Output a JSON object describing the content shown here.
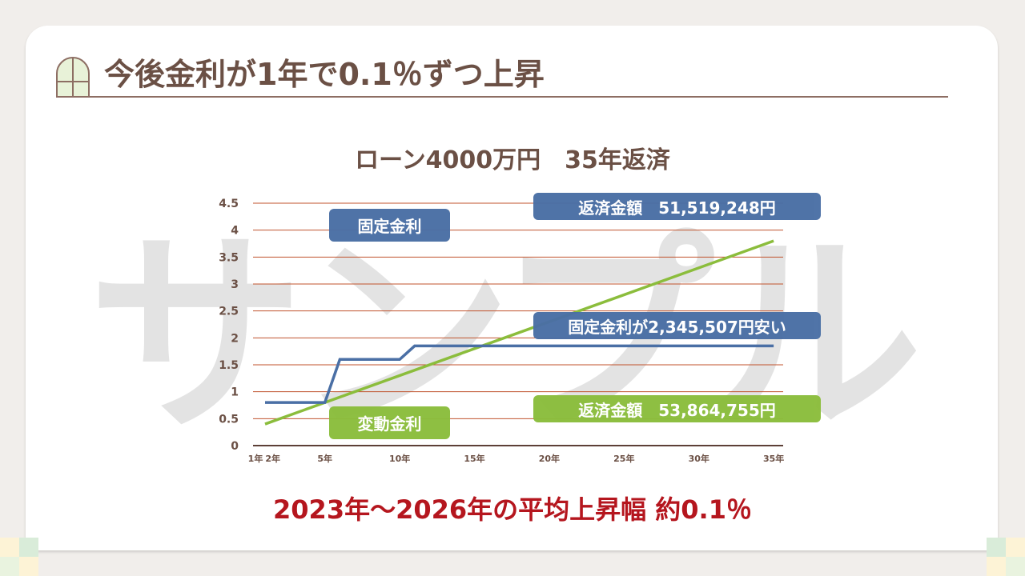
{
  "title": "今後金利が1年で0.1％ずつ上昇",
  "watermark": "サンプル",
  "colors": {
    "fixed": "#4a6fa5",
    "variable": "#8bbd3c",
    "grid": "#c0532e",
    "text": "#6b5045",
    "accent": "#b5161e"
  },
  "labels": {
    "fixed": "固定金利",
    "variable": "変動金利",
    "fixed_total": "返済金額　51,519,248円",
    "variable_total": "返済金額　53,864,755円",
    "difference": "固定金利が2,345,507円安い"
  },
  "footer": "2023年～2026年の平均上昇幅 約0.1％",
  "chart_data": {
    "type": "line",
    "title": "ローン4000万円　35年返済",
    "ylim": [
      0,
      4.5
    ],
    "yticks": [
      "0",
      "0.5",
      "1",
      "1.5",
      "2",
      "2.5",
      "3",
      "3.5",
      "4",
      "4.5"
    ],
    "xticks": [
      {
        "year": 1,
        "label": "1年"
      },
      {
        "year": 2,
        "label": "2年"
      },
      {
        "year": 5,
        "label": "5年"
      },
      {
        "year": 10,
        "label": "10年"
      },
      {
        "year": 15,
        "label": "15年"
      },
      {
        "year": 20,
        "label": "20年"
      },
      {
        "year": 25,
        "label": "25年"
      },
      {
        "year": 30,
        "label": "30年"
      },
      {
        "year": 35,
        "label": "35年"
      }
    ],
    "grid": true,
    "series": [
      {
        "name": "固定金利",
        "color": "#4a6fa5",
        "points": [
          [
            1,
            0.8
          ],
          [
            5,
            0.8
          ],
          [
            6,
            1.6
          ],
          [
            10,
            1.6
          ],
          [
            11,
            1.85
          ],
          [
            35,
            1.85
          ]
        ]
      },
      {
        "name": "変動金利",
        "color": "#8bbd3c",
        "points": [
          [
            1,
            0.4
          ],
          [
            35,
            3.8
          ]
        ]
      }
    ]
  }
}
